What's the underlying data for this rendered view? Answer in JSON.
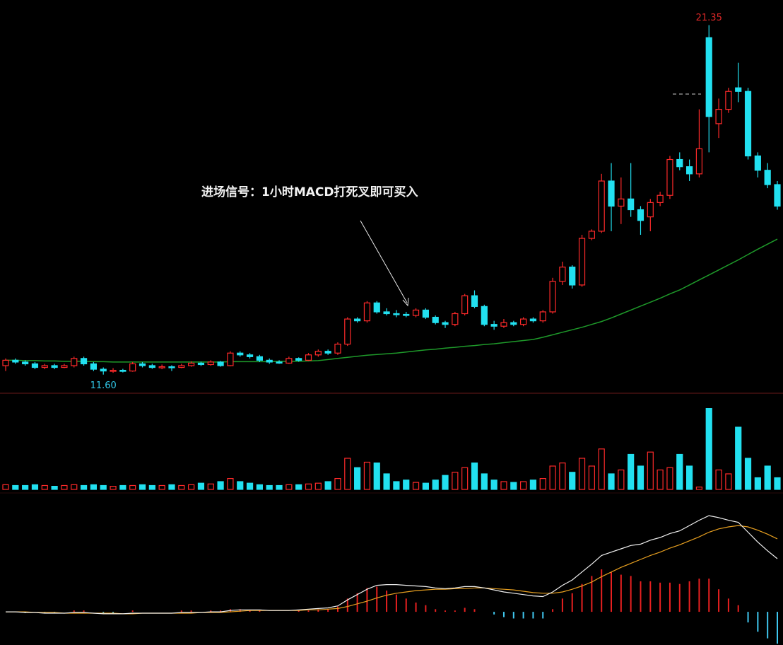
{
  "chart_data": [
    {
      "type": "candlestick",
      "annotation": "进场信号：1小时MACD打死叉即可买入",
      "max_label": 21.35,
      "min_label": {
        "value": 11.6,
        "label": "11.60"
      },
      "ylim": [
        11.1,
        22.05
      ],
      "up_color": "#ff2a2a",
      "down_color": "#22e0f0",
      "ma_color": "#1e9a2a",
      "open": [
        11.85,
        12.0,
        11.95,
        11.9,
        11.8,
        11.85,
        11.8,
        11.85,
        12.05,
        11.9,
        11.75,
        11.7,
        11.72,
        11.7,
        11.9,
        11.85,
        11.8,
        11.82,
        11.8,
        11.85,
        11.92,
        11.88,
        11.95,
        11.85,
        12.2,
        12.15,
        12.1,
        12.0,
        11.95,
        11.92,
        12.05,
        12.0,
        12.15,
        12.25,
        12.2,
        12.45,
        13.15,
        13.1,
        13.6,
        13.35,
        13.3,
        13.28,
        13.25,
        13.4,
        13.2,
        13.05,
        13.0,
        13.3,
        13.8,
        13.5,
        13.0,
        12.95,
        13.05,
        13.0,
        13.15,
        13.1,
        13.35,
        14.2,
        14.6,
        14.1,
        15.4,
        15.6,
        17.0,
        16.3,
        16.5,
        16.2,
        16.0,
        16.4,
        16.6,
        17.6,
        17.4,
        17.2,
        21.0,
        18.6,
        19.0,
        19.6,
        19.5,
        17.7,
        17.3,
        16.9
      ],
      "high": [
        12.05,
        12.05,
        12.0,
        11.95,
        11.9,
        11.9,
        11.9,
        12.1,
        12.1,
        11.95,
        11.8,
        11.78,
        11.76,
        11.95,
        11.95,
        11.9,
        11.88,
        11.86,
        11.9,
        11.97,
        11.96,
        12.0,
        11.98,
        12.25,
        12.25,
        12.2,
        12.15,
        12.05,
        12.0,
        12.1,
        12.08,
        12.2,
        12.3,
        12.3,
        12.5,
        13.2,
        13.2,
        13.65,
        13.65,
        13.45,
        13.4,
        13.35,
        13.45,
        13.45,
        13.25,
        13.1,
        13.35,
        13.85,
        13.95,
        13.55,
        13.1,
        13.15,
        13.1,
        13.2,
        13.2,
        13.4,
        14.3,
        14.75,
        14.65,
        15.5,
        15.65,
        17.2,
        17.5,
        17.1,
        17.5,
        16.3,
        16.5,
        16.7,
        17.7,
        17.8,
        17.6,
        19.0,
        21.35,
        19.3,
        19.6,
        20.3,
        19.6,
        17.8,
        17.5,
        17.0
      ],
      "low": [
        11.7,
        11.9,
        11.85,
        11.75,
        11.75,
        11.75,
        11.78,
        11.8,
        11.85,
        11.7,
        11.6,
        11.65,
        11.66,
        11.68,
        11.8,
        11.76,
        11.75,
        11.7,
        11.78,
        11.82,
        11.84,
        11.85,
        11.82,
        11.83,
        12.1,
        12.05,
        11.95,
        11.9,
        11.9,
        11.9,
        11.96,
        11.98,
        12.1,
        12.15,
        12.15,
        12.4,
        13.05,
        13.05,
        13.3,
        13.25,
        13.2,
        13.2,
        13.2,
        13.15,
        13.0,
        12.9,
        12.95,
        13.25,
        13.45,
        12.95,
        12.85,
        12.9,
        12.95,
        12.95,
        13.05,
        13.05,
        13.3,
        14.1,
        14.0,
        14.05,
        15.35,
        15.55,
        15.6,
        15.8,
        16.0,
        15.5,
        15.6,
        16.3,
        16.5,
        17.3,
        17.0,
        17.1,
        17.8,
        18.2,
        18.9,
        19.2,
        17.6,
        17.1,
        16.8,
        16.2
      ],
      "close": [
        12.0,
        11.95,
        11.9,
        11.8,
        11.85,
        11.8,
        11.85,
        12.05,
        11.9,
        11.75,
        11.7,
        11.72,
        11.7,
        11.9,
        11.85,
        11.8,
        11.82,
        11.8,
        11.85,
        11.92,
        11.88,
        11.95,
        11.85,
        12.2,
        12.15,
        12.1,
        12.0,
        11.95,
        11.92,
        12.05,
        12.0,
        12.15,
        12.25,
        12.2,
        12.45,
        13.15,
        13.1,
        13.6,
        13.35,
        13.3,
        13.28,
        13.25,
        13.4,
        13.2,
        13.05,
        13.0,
        13.3,
        13.8,
        13.5,
        13.0,
        12.95,
        13.05,
        13.0,
        13.15,
        13.1,
        13.35,
        14.2,
        14.6,
        14.1,
        15.4,
        15.6,
        17.0,
        16.3,
        16.5,
        16.2,
        15.9,
        16.4,
        16.6,
        17.6,
        17.4,
        17.2,
        17.9,
        18.8,
        19.0,
        19.5,
        19.5,
        17.7,
        17.3,
        16.9,
        16.3
      ],
      "ma": [
        12.0,
        12.0,
        11.99,
        11.99,
        11.98,
        11.98,
        11.97,
        11.97,
        11.97,
        11.96,
        11.96,
        11.95,
        11.95,
        11.95,
        11.95,
        11.95,
        11.95,
        11.95,
        11.95,
        11.95,
        11.95,
        11.95,
        11.95,
        11.96,
        11.96,
        11.96,
        11.96,
        11.96,
        11.97,
        11.97,
        11.97,
        11.98,
        11.99,
        12.02,
        12.05,
        12.08,
        12.11,
        12.14,
        12.16,
        12.18,
        12.2,
        12.23,
        12.26,
        12.29,
        12.31,
        12.34,
        12.36,
        12.39,
        12.41,
        12.44,
        12.46,
        12.49,
        12.52,
        12.55,
        12.58,
        12.64,
        12.71,
        12.78,
        12.85,
        12.92,
        13.0,
        13.08,
        13.18,
        13.29,
        13.4,
        13.51,
        13.62,
        13.73,
        13.85,
        13.96,
        14.1,
        14.24,
        14.38,
        14.52,
        14.66,
        14.8,
        14.95,
        15.1,
        15.24,
        15.38
      ]
    },
    {
      "type": "bar",
      "ylim": [
        0,
        120
      ],
      "values": [
        6,
        5,
        5,
        6,
        5,
        4,
        5,
        6,
        5,
        6,
        5,
        4,
        5,
        5,
        6,
        5,
        5,
        6,
        5,
        6,
        8,
        7,
        10,
        14,
        10,
        8,
        6,
        5,
        5,
        6,
        6,
        7,
        8,
        10,
        14,
        40,
        28,
        35,
        34,
        20,
        10,
        12,
        9,
        8,
        12,
        18,
        22,
        28,
        34,
        20,
        12,
        10,
        9,
        10,
        12,
        14,
        30,
        34,
        22,
        40,
        30,
        52,
        20,
        25,
        45,
        30,
        48,
        25,
        28,
        45,
        30,
        3,
        104,
        25,
        20,
        80,
        40,
        15,
        30,
        15
      ]
    },
    {
      "type": "macd",
      "ylim": [
        -0.5,
        1.6
      ],
      "dif_color": "#f0f0f0",
      "dea_color": "#e8a020",
      "pos_color": "#e82020",
      "neg_color": "#40c8f0",
      "dif": [
        0.0,
        0.0,
        -0.01,
        -0.01,
        -0.02,
        -0.02,
        -0.02,
        -0.01,
        -0.01,
        -0.02,
        -0.03,
        -0.03,
        -0.03,
        -0.02,
        -0.02,
        -0.02,
        -0.02,
        -0.02,
        -0.01,
        -0.01,
        -0.01,
        0.0,
        0.0,
        0.02,
        0.03,
        0.03,
        0.03,
        0.02,
        0.02,
        0.02,
        0.03,
        0.04,
        0.05,
        0.06,
        0.09,
        0.18,
        0.26,
        0.34,
        0.4,
        0.41,
        0.41,
        0.4,
        0.39,
        0.38,
        0.36,
        0.35,
        0.36,
        0.38,
        0.38,
        0.36,
        0.33,
        0.3,
        0.28,
        0.26,
        0.24,
        0.23,
        0.3,
        0.4,
        0.48,
        0.6,
        0.72,
        0.85,
        0.9,
        0.95,
        1.0,
        1.02,
        1.08,
        1.12,
        1.18,
        1.22,
        1.3,
        1.38,
        1.45,
        1.42,
        1.38,
        1.35,
        1.2,
        1.05,
        0.92,
        0.8
      ],
      "dea": [
        0.0,
        0.0,
        0.0,
        -0.01,
        -0.01,
        -0.01,
        -0.02,
        -0.02,
        -0.02,
        -0.02,
        -0.02,
        -0.02,
        -0.03,
        -0.03,
        -0.02,
        -0.02,
        -0.02,
        -0.02,
        -0.02,
        -0.02,
        -0.01,
        -0.01,
        -0.01,
        0.0,
        0.01,
        0.02,
        0.02,
        0.02,
        0.02,
        0.02,
        0.02,
        0.03,
        0.03,
        0.04,
        0.05,
        0.08,
        0.12,
        0.16,
        0.21,
        0.25,
        0.28,
        0.3,
        0.32,
        0.33,
        0.34,
        0.34,
        0.35,
        0.35,
        0.36,
        0.36,
        0.35,
        0.34,
        0.33,
        0.31,
        0.29,
        0.28,
        0.28,
        0.3,
        0.34,
        0.39,
        0.45,
        0.53,
        0.6,
        0.67,
        0.73,
        0.79,
        0.85,
        0.9,
        0.96,
        1.01,
        1.07,
        1.13,
        1.2,
        1.25,
        1.28,
        1.3,
        1.28,
        1.23,
        1.17,
        1.1
      ],
      "hist": [
        0,
        0,
        -0.02,
        0,
        -0.02,
        -0.02,
        0,
        0.02,
        0.02,
        0,
        -0.02,
        -0.02,
        0,
        0.02,
        0,
        0,
        0,
        0,
        0.02,
        0.02,
        0,
        0.02,
        0.02,
        0.04,
        0.04,
        0.02,
        0.02,
        0,
        0,
        0,
        0.02,
        0.02,
        0.04,
        0.04,
        0.08,
        0.2,
        0.28,
        0.36,
        0.38,
        0.32,
        0.26,
        0.2,
        0.14,
        0.1,
        0.04,
        0.02,
        0.02,
        0.06,
        0.04,
        0,
        -0.04,
        -0.08,
        -0.1,
        -0.1,
        -0.1,
        -0.1,
        0.04,
        0.2,
        0.28,
        0.42,
        0.54,
        0.64,
        0.6,
        0.56,
        0.54,
        0.46,
        0.46,
        0.44,
        0.44,
        0.42,
        0.46,
        0.5,
        0.5,
        0.34,
        0.2,
        0.1,
        -0.16,
        -0.3,
        -0.4,
        -0.48
      ]
    }
  ]
}
